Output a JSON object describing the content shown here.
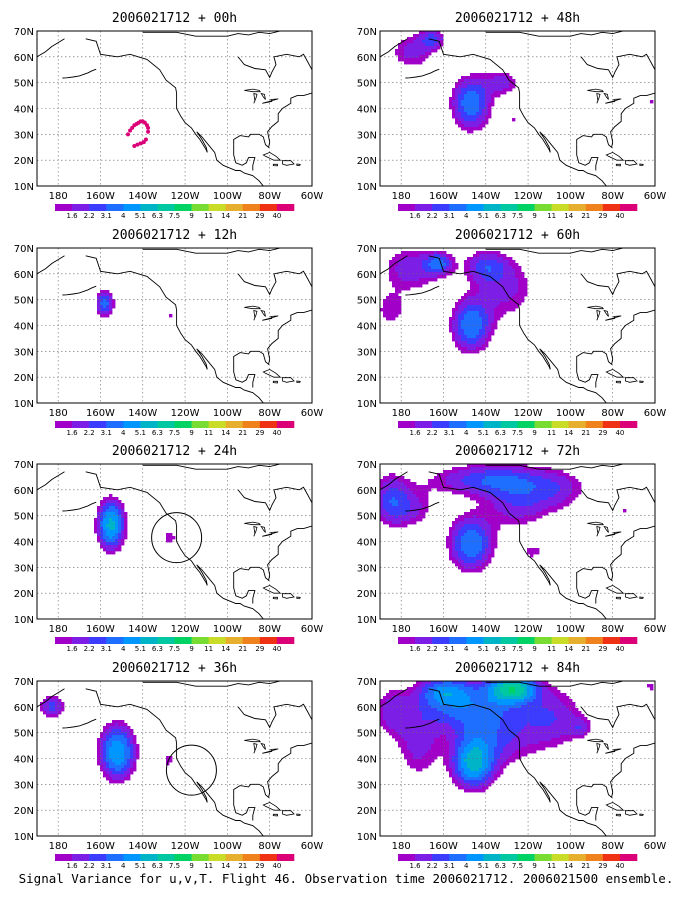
{
  "caption": "Signal Variance for u,v,T. Flight 46. Observation time 2006021712. 2006021500 ensemble.",
  "chart_data": {
    "type": "heatmap",
    "colorbar": {
      "labels": [
        "1.6",
        "2.2",
        "3.1",
        "4",
        "5.1",
        "6.3",
        "7.5",
        "9",
        "11",
        "14",
        "21",
        "29",
        "40"
      ],
      "colors": [
        "#a000c8",
        "#7d1ee6",
        "#3c3cff",
        "#1e6eff",
        "#0096ff",
        "#00b4c8",
        "#00c8a0",
        "#00d264",
        "#78dc32",
        "#c8dc28",
        "#e6af2d",
        "#f0821e",
        "#f03214",
        "#dc0078"
      ]
    },
    "xaxis": {
      "ticks": [
        "180",
        "160W",
        "140W",
        "120W",
        "100W",
        "80W",
        "60W"
      ],
      "range": [
        -190,
        -60
      ]
    },
    "yaxis": {
      "ticks": [
        "10N",
        "20N",
        "30N",
        "40N",
        "50N",
        "60N",
        "70N"
      ],
      "range": [
        10,
        70
      ]
    },
    "grid": true,
    "panels": [
      {
        "title": "2006021712 + 00h"
      },
      {
        "title": "2006021712 + 12h"
      },
      {
        "title": "2006021712 + 24h"
      },
      {
        "title": "2006021712 + 36h"
      },
      {
        "title": "2006021712 + 48h"
      },
      {
        "title": "2006021712 + 60h"
      },
      {
        "title": "2006021712 + 72h"
      },
      {
        "title": "2006021712 + 84h"
      }
    ]
  }
}
